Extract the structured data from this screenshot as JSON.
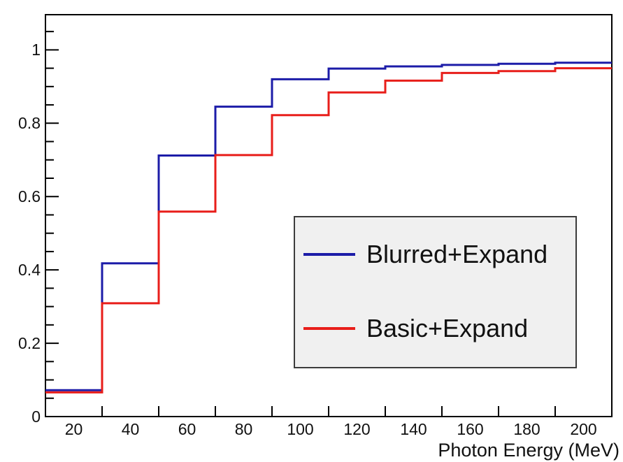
{
  "chart_data": {
    "type": "step-histogram",
    "title": "",
    "xlabel": "Photon Energy (MeV)",
    "ylabel": "",
    "xlim": [
      10,
      210
    ],
    "ylim": [
      0,
      1.096
    ],
    "grid": false,
    "frame_color": "#000000",
    "bin_edges": [
      10,
      30,
      50,
      70,
      90,
      110,
      130,
      150,
      170,
      190,
      210
    ],
    "x_tick_marks": [
      30,
      50,
      70,
      90,
      110,
      130,
      150,
      170,
      190
    ],
    "x_tick_labels": [
      {
        "value": 20,
        "label": "20"
      },
      {
        "value": 40,
        "label": "40"
      },
      {
        "value": 60,
        "label": "60"
      },
      {
        "value": 80,
        "label": "80"
      },
      {
        "value": 100,
        "label": "100"
      },
      {
        "value": 120,
        "label": "120"
      },
      {
        "value": 140,
        "label": "140"
      },
      {
        "value": 160,
        "label": "160"
      },
      {
        "value": 180,
        "label": "180"
      },
      {
        "value": 200,
        "label": "200"
      }
    ],
    "y_major_ticks": [
      {
        "value": 0,
        "label": "0"
      },
      {
        "value": 0.2,
        "label": "0.2"
      },
      {
        "value": 0.4,
        "label": "0.4"
      },
      {
        "value": 0.6,
        "label": "0.6"
      },
      {
        "value": 0.8,
        "label": "0.8"
      },
      {
        "value": 1,
        "label": "1"
      }
    ],
    "y_minor_step": 0.05,
    "series": [
      {
        "name": "Blurred+Expand",
        "color": "#1c1ca8",
        "values": [
          0.072,
          0.418,
          0.712,
          0.845,
          0.92,
          0.949,
          0.955,
          0.959,
          0.962,
          0.965
        ]
      },
      {
        "name": "Basic+Expand",
        "color": "#e81e1a",
        "values": [
          0.066,
          0.309,
          0.559,
          0.713,
          0.822,
          0.884,
          0.916,
          0.937,
          0.942,
          0.95
        ]
      }
    ],
    "legend": {
      "position": "bottom-right-inside",
      "background": "#f0f0f0",
      "border_color": "#3c3c3c",
      "entries": [
        "Blurred+Expand",
        "Basic+Expand"
      ]
    }
  }
}
